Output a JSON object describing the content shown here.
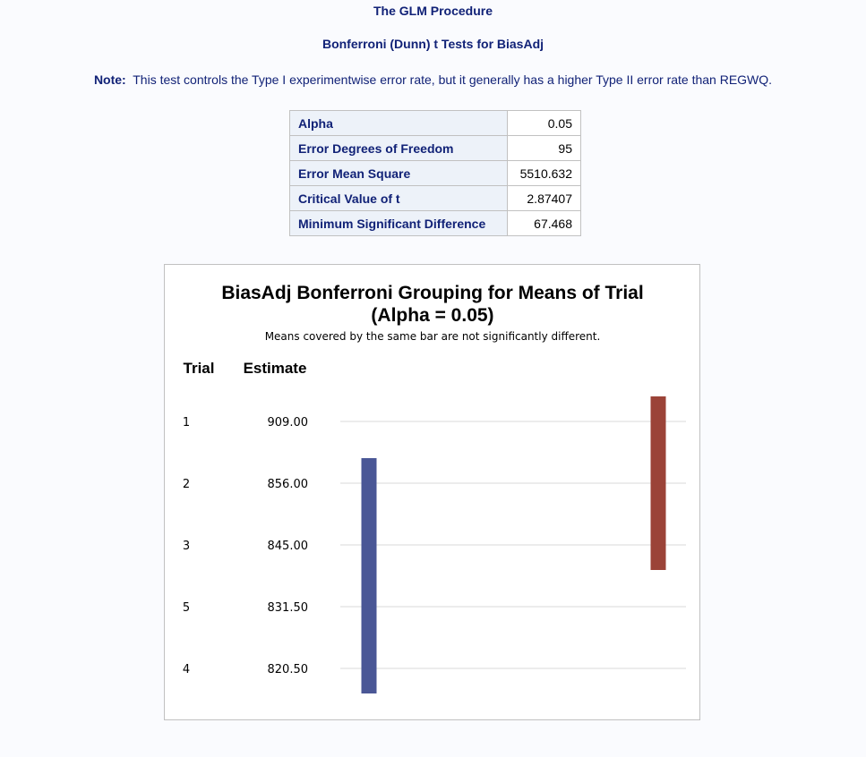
{
  "header": {
    "procedure_title": "The GLM Procedure",
    "test_title": "Bonferroni (Dunn) t Tests for BiasAdj",
    "note_label": "Note:",
    "note_text": "This test controls the Type I experimentwise error rate, but it generally has a higher Type II error rate than REGWQ."
  },
  "stats_table": {
    "rows": [
      {
        "label": "Alpha",
        "value": "0.05"
      },
      {
        "label": "Error Degrees of Freedom",
        "value": "95"
      },
      {
        "label": "Error Mean Square",
        "value": "5510.632"
      },
      {
        "label": "Critical Value of t",
        "value": "2.87407"
      },
      {
        "label": "Minimum Significant Difference",
        "value": "67.468"
      }
    ]
  },
  "chart_data": {
    "type": "table",
    "title": "BiasAdj Bonferroni Grouping for Means of Trial",
    "subtitle": "(Alpha = 0.05)",
    "footnote": "Means covered by the same bar are not significantly different.",
    "column_headers": [
      "Trial",
      "Estimate"
    ],
    "rows": [
      {
        "trial": "1",
        "estimate": "909.00"
      },
      {
        "trial": "2",
        "estimate": "856.00"
      },
      {
        "trial": "3",
        "estimate": "845.00"
      },
      {
        "trial": "5",
        "estimate": "831.50"
      },
      {
        "trial": "4",
        "estimate": "820.50"
      }
    ],
    "groups": [
      {
        "color": "#4a5796",
        "start_row": 1,
        "end_row": 4
      },
      {
        "color": "#9b4338",
        "start_row": 0,
        "end_row": 2
      }
    ]
  }
}
